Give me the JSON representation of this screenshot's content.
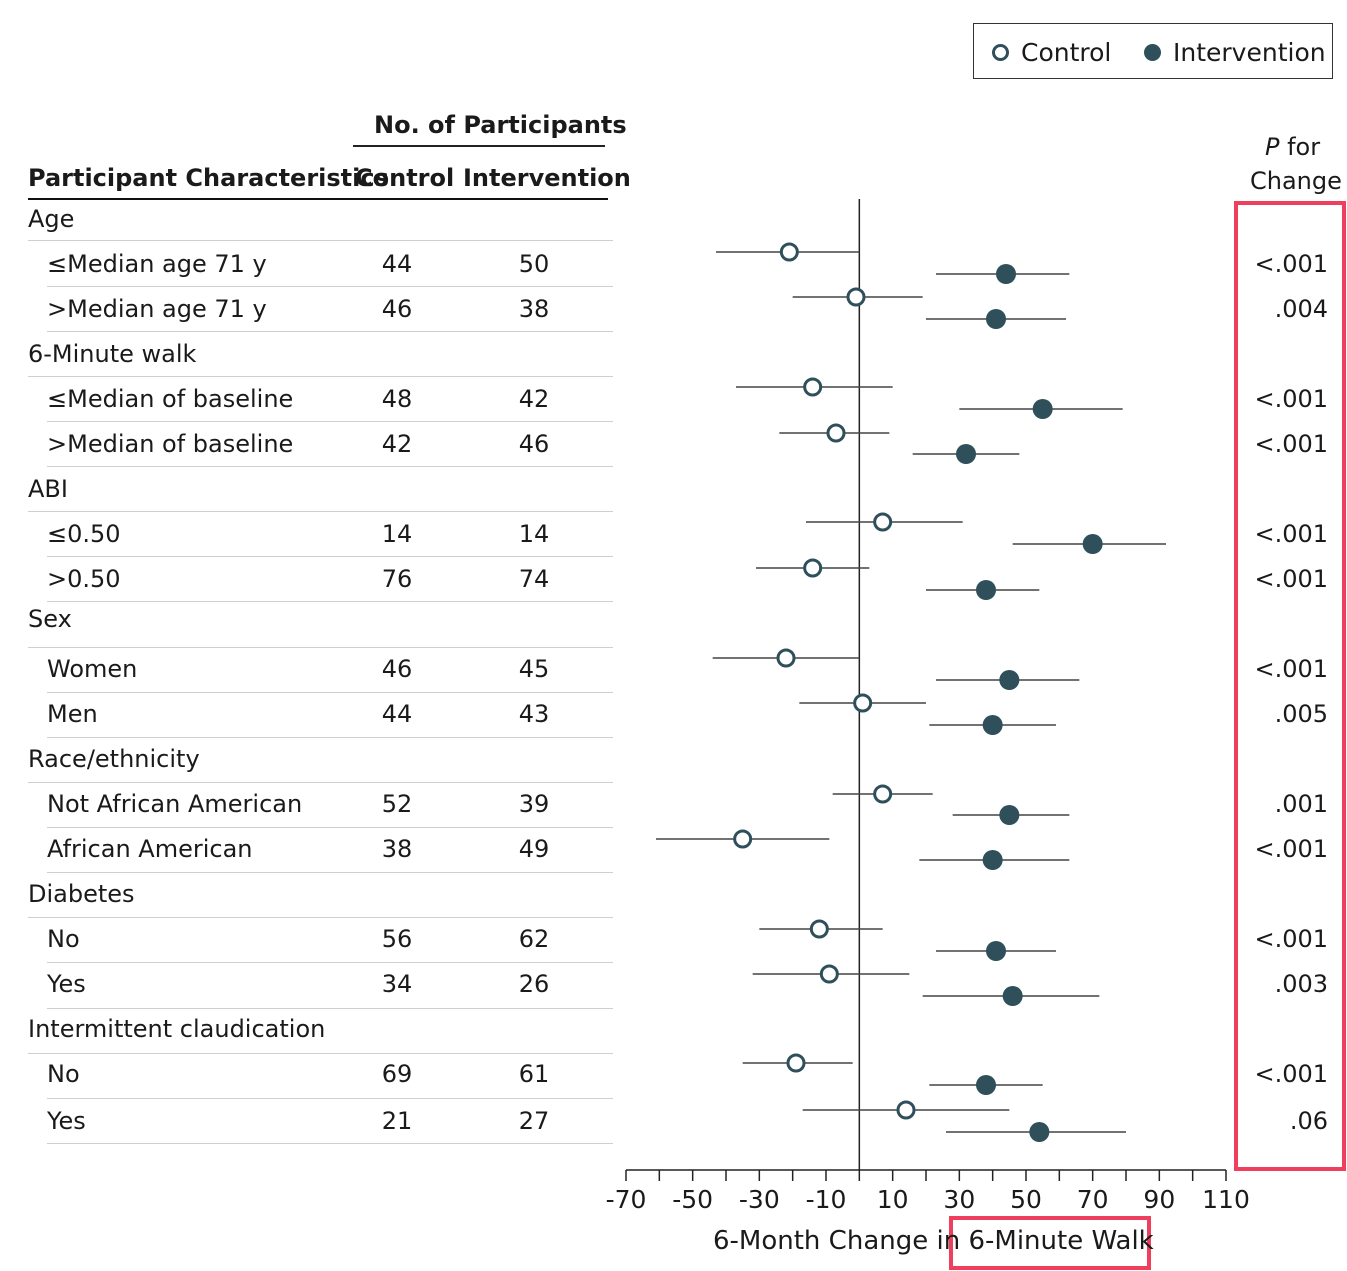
{
  "legend": {
    "control_label": "Control",
    "intervention_label": "Intervention"
  },
  "table": {
    "group_header": "No. of Participants",
    "col_characteristic": "Participant Characteristics",
    "col_control": "Control",
    "col_intervention": "Intervention",
    "pvalue_header_italic": "P",
    "pvalue_header_rest": "for",
    "pvalue_header_line2": "Change"
  },
  "rows": [
    {
      "type": "category",
      "label": "Age"
    },
    {
      "type": "sub",
      "label": "≤Median age 71 y",
      "control_n": "44",
      "intervention_n": "50",
      "p": "<.001"
    },
    {
      "type": "sub",
      "label": ">Median age 71 y",
      "control_n": "46",
      "intervention_n": "38",
      "p": ".004"
    },
    {
      "type": "category",
      "label": "6-Minute walk"
    },
    {
      "type": "sub",
      "label": "≤Median of baseline",
      "control_n": "48",
      "intervention_n": "42",
      "p": "<.001"
    },
    {
      "type": "sub",
      "label": ">Median of baseline",
      "control_n": "42",
      "intervention_n": "46",
      "p": "<.001"
    },
    {
      "type": "category",
      "label": "ABI"
    },
    {
      "type": "sub",
      "label": "≤0.50",
      "control_n": "14",
      "intervention_n": "14",
      "p": "<.001"
    },
    {
      "type": "sub",
      "label": ">0.50",
      "control_n": "76",
      "intervention_n": "74",
      "p": "<.001"
    },
    {
      "type": "category",
      "label": "Sex"
    },
    {
      "type": "sub",
      "label": "Women",
      "control_n": "46",
      "intervention_n": "45",
      "p": "<.001"
    },
    {
      "type": "sub",
      "label": "Men",
      "control_n": "44",
      "intervention_n": "43",
      "p": ".005"
    },
    {
      "type": "category",
      "label": "Race/ethnicity"
    },
    {
      "type": "sub",
      "label": "Not African American",
      "control_n": "52",
      "intervention_n": "39",
      "p": ".001"
    },
    {
      "type": "sub",
      "label": "African American",
      "control_n": "38",
      "intervention_n": "49",
      "p": "<.001"
    },
    {
      "type": "category",
      "label": "Diabetes"
    },
    {
      "type": "sub",
      "label": "No",
      "control_n": "56",
      "intervention_n": "62",
      "p": "<.001"
    },
    {
      "type": "sub",
      "label": "Yes",
      "control_n": "34",
      "intervention_n": "26",
      "p": ".003"
    },
    {
      "type": "category",
      "label": "Intermittent claudication"
    },
    {
      "type": "sub",
      "label": "No",
      "control_n": "69",
      "intervention_n": "61",
      "p": "<.001"
    },
    {
      "type": "sub",
      "label": "Yes",
      "control_n": "21",
      "intervention_n": "27",
      "p": ".06"
    }
  ],
  "chart_data": {
    "type": "scatter",
    "subtype": "forest-plot",
    "xlabel_part1": "6-Month Change in",
    "xlabel_part2": "6-Minute Walk",
    "xlim": [
      -70,
      110
    ],
    "xticks": [
      -70,
      -50,
      -30,
      -10,
      10,
      30,
      50,
      70,
      90,
      110
    ],
    "reference_line": 0,
    "colors": {
      "control_fill": "#ffffff",
      "control_stroke": "#2f4f5a",
      "intervention": "#2f4f5a",
      "ci_line": "#444444",
      "highlight": "#ee3f5c"
    },
    "series": [
      {
        "name": "Control",
        "points": [
          {
            "subgroup": "≤Median age 71 y",
            "estimate": -21,
            "ci_low": -43,
            "ci_high": 0
          },
          {
            "subgroup": ">Median age 71 y",
            "estimate": -1,
            "ci_low": -20,
            "ci_high": 19
          },
          {
            "subgroup": "≤Median of baseline",
            "estimate": -14,
            "ci_low": -37,
            "ci_high": 10
          },
          {
            "subgroup": ">Median of baseline",
            "estimate": -7,
            "ci_low": -24,
            "ci_high": 9
          },
          {
            "subgroup": "≤0.50",
            "estimate": 7,
            "ci_low": -16,
            "ci_high": 31
          },
          {
            "subgroup": ">0.50",
            "estimate": -14,
            "ci_low": -31,
            "ci_high": 3
          },
          {
            "subgroup": "Women",
            "estimate": -22,
            "ci_low": -44,
            "ci_high": 0
          },
          {
            "subgroup": "Men",
            "estimate": 1,
            "ci_low": -18,
            "ci_high": 20
          },
          {
            "subgroup": "Not African American",
            "estimate": 7,
            "ci_low": -8,
            "ci_high": 22
          },
          {
            "subgroup": "African American",
            "estimate": -35,
            "ci_low": -61,
            "ci_high": -9
          },
          {
            "subgroup": "Diabetes: No",
            "estimate": -12,
            "ci_low": -30,
            "ci_high": 7
          },
          {
            "subgroup": "Diabetes: Yes",
            "estimate": -9,
            "ci_low": -32,
            "ci_high": 15
          },
          {
            "subgroup": "Claudication: No",
            "estimate": -19,
            "ci_low": -35,
            "ci_high": -2
          },
          {
            "subgroup": "Claudication: Yes",
            "estimate": 14,
            "ci_low": -17,
            "ci_high": 45
          }
        ]
      },
      {
        "name": "Intervention",
        "points": [
          {
            "subgroup": "≤Median age 71 y",
            "estimate": 44,
            "ci_low": 23,
            "ci_high": 63
          },
          {
            "subgroup": ">Median age 71 y",
            "estimate": 41,
            "ci_low": 20,
            "ci_high": 62
          },
          {
            "subgroup": "≤Median of baseline",
            "estimate": 55,
            "ci_low": 30,
            "ci_high": 79
          },
          {
            "subgroup": ">Median of baseline",
            "estimate": 32,
            "ci_low": 16,
            "ci_high": 48
          },
          {
            "subgroup": "≤0.50",
            "estimate": 70,
            "ci_low": 46,
            "ci_high": 92
          },
          {
            "subgroup": ">0.50",
            "estimate": 38,
            "ci_low": 20,
            "ci_high": 54
          },
          {
            "subgroup": "Women",
            "estimate": 45,
            "ci_low": 23,
            "ci_high": 66
          },
          {
            "subgroup": "Men",
            "estimate": 40,
            "ci_low": 21,
            "ci_high": 59
          },
          {
            "subgroup": "Not African American",
            "estimate": 45,
            "ci_low": 28,
            "ci_high": 63
          },
          {
            "subgroup": "African American",
            "estimate": 40,
            "ci_low": 18,
            "ci_high": 63
          },
          {
            "subgroup": "Diabetes: No",
            "estimate": 41,
            "ci_low": 23,
            "ci_high": 59
          },
          {
            "subgroup": "Diabetes: Yes",
            "estimate": 46,
            "ci_low": 19,
            "ci_high": 72
          },
          {
            "subgroup": "Claudication: No",
            "estimate": 38,
            "ci_low": 21,
            "ci_high": 55
          },
          {
            "subgroup": "Claudication: Yes",
            "estimate": 54,
            "ci_low": 26,
            "ci_high": 80
          }
        ]
      }
    ]
  }
}
